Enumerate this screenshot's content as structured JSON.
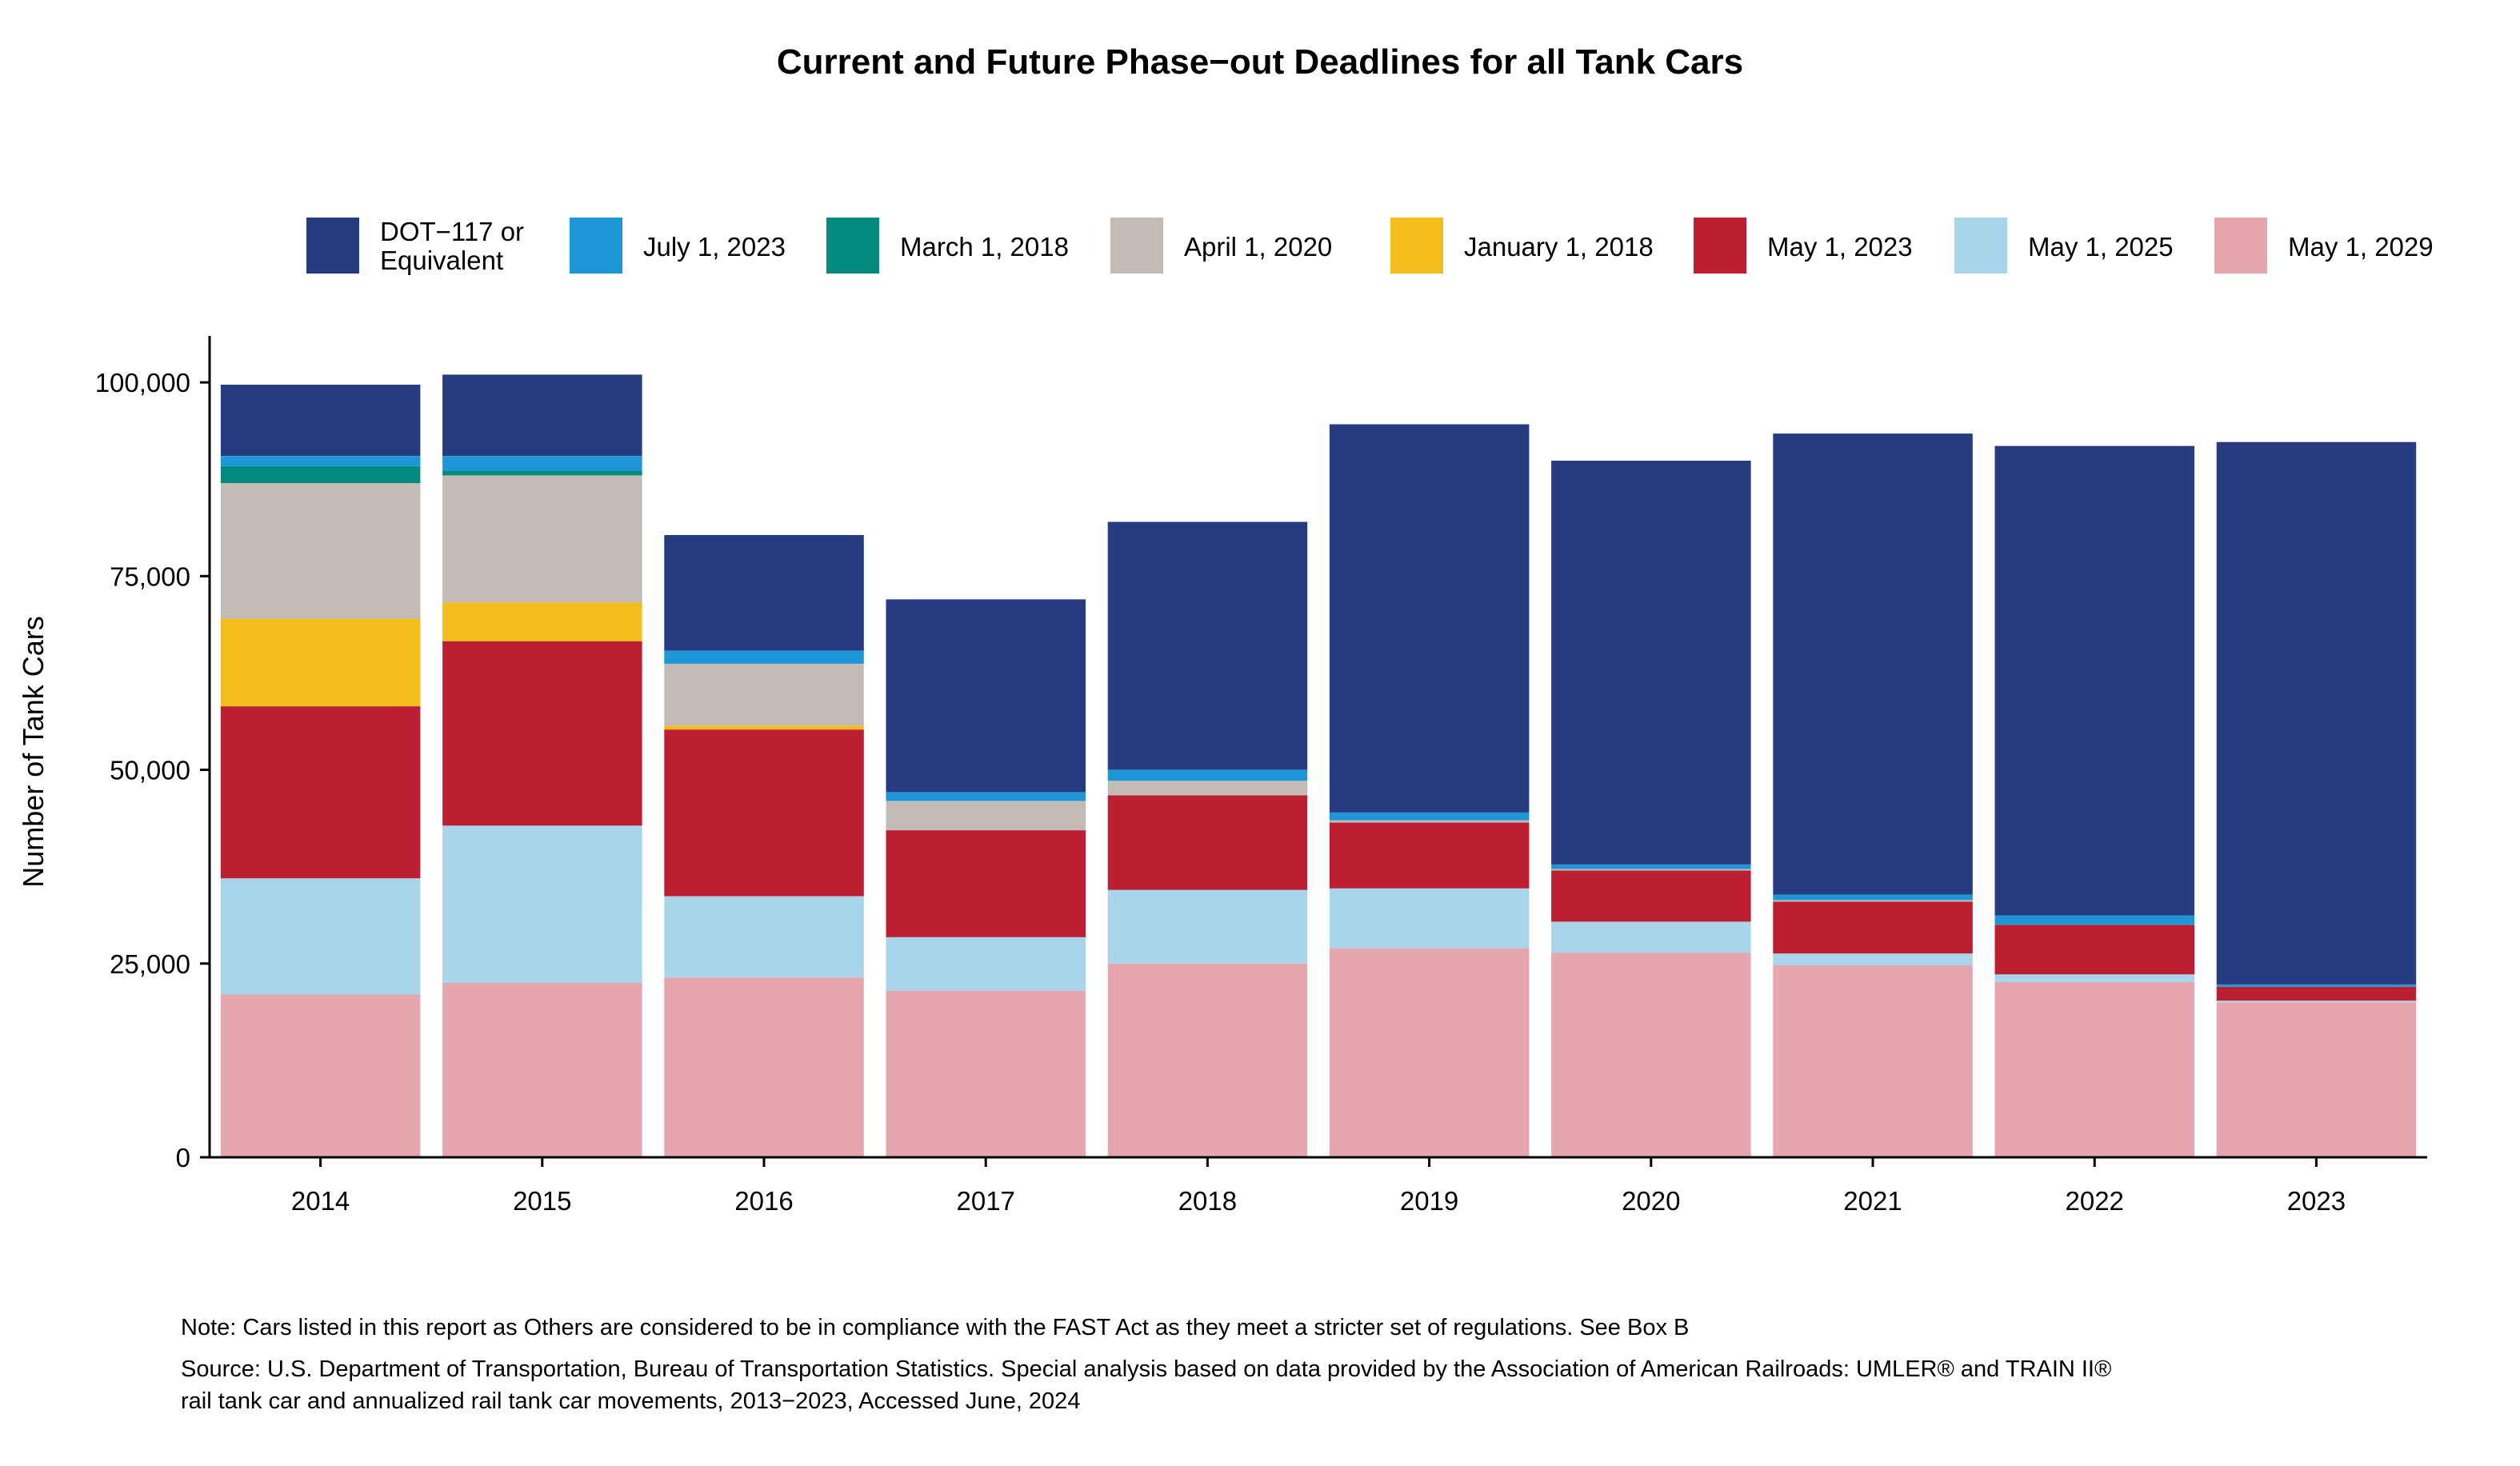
{
  "chart_data": {
    "type": "bar",
    "stacked": true,
    "title": "Current and Future Phase−out Deadlines for all Tank Cars",
    "xlabel": "",
    "ylabel": "Number of Tank Cars",
    "ylim": [
      0,
      106000
    ],
    "yticks": [
      0,
      25000,
      50000,
      75000,
      100000
    ],
    "ytick_labels": [
      "0",
      "25,000",
      "50,000",
      "75,000",
      "100,000"
    ],
    "categories": [
      "2014",
      "2015",
      "2016",
      "2017",
      "2018",
      "2019",
      "2020",
      "2021",
      "2022",
      "2023"
    ],
    "legend_position": "top",
    "series": [
      {
        "name": "May 1, 2029",
        "color": "#E6A6AD",
        "values": [
          21000,
          22500,
          23200,
          21500,
          25000,
          27000,
          26400,
          24800,
          22600,
          20000
        ]
      },
      {
        "name": "May 1, 2025",
        "color": "#A8D5EC",
        "values": [
          15000,
          20300,
          10500,
          6900,
          9500,
          7700,
          4000,
          1500,
          1000,
          200
        ]
      },
      {
        "name": "May 1, 2023",
        "color": "#BC1F32",
        "values": [
          22200,
          23800,
          21500,
          13800,
          12200,
          8500,
          6600,
          6700,
          6400,
          1800
        ]
      },
      {
        "name": "January 1, 2018",
        "color": "#F3BD1B",
        "values": [
          11300,
          5000,
          500,
          0,
          0,
          0,
          0,
          0,
          0,
          0
        ]
      },
      {
        "name": "April 1, 2020",
        "color": "#C3BCB6",
        "values": [
          17500,
          16400,
          8000,
          3800,
          1900,
          300,
          200,
          200,
          0,
          0
        ]
      },
      {
        "name": "March 1, 2018",
        "color": "#038A7E",
        "values": [
          2200,
          600,
          0,
          0,
          0,
          0,
          0,
          0,
          0,
          0
        ]
      },
      {
        "name": "July 1, 2023",
        "color": "#1C96D7",
        "values": [
          1300,
          1900,
          1700,
          1100,
          1400,
          1000,
          600,
          700,
          1200,
          300
        ]
      },
      {
        "name": "DOT−117 or Equivalent",
        "color": "#263B80",
        "values": [
          9200,
          10500,
          14900,
          24900,
          32000,
          50100,
          52100,
          59500,
          60600,
          70000
        ]
      }
    ],
    "legend_order": [
      "DOT−117 or Equivalent",
      "July 1, 2023",
      "March 1, 2018",
      "April 1, 2020",
      "January 1, 2018",
      "May 1, 2023",
      "May 1, 2025",
      "May 1, 2029"
    ]
  },
  "notes": {
    "note": "Note: Cars listed in this report as Others are considered to be in compliance with the FAST Act as they meet a stricter set of regulations. See Box B",
    "source_line1": "Source: U.S. Department of Transportation, Bureau of Transportation Statistics. Special analysis based on data provided by the Association of American Railroads: UMLER® and TRAIN II®",
    "source_line2": "rail tank car and annualized rail tank car movements, 2013−2023, Accessed June, 2024"
  }
}
